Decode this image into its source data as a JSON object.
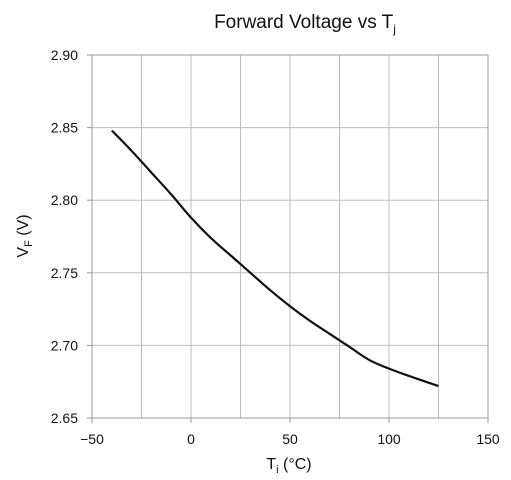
{
  "chart_data": {
    "type": "line",
    "title": "Forward Voltage vs Tj",
    "title_main": "Forward Voltage  vs T",
    "title_sub": "j",
    "xlabel": "Ti (°C)",
    "xlabel_main": "T",
    "xlabel_sub": "i",
    "xlabel_unit": " (°C)",
    "ylabel": "VF (V)",
    "ylabel_main": "V",
    "ylabel_sub": "F",
    "ylabel_unit": " (V)",
    "xlim": [
      -50,
      150
    ],
    "ylim": [
      2.65,
      2.9
    ],
    "grid": true,
    "x_ticks": [
      -50,
      0,
      50,
      100,
      150
    ],
    "x_tick_labels": [
      "−50",
      "0",
      "50",
      "100",
      "150"
    ],
    "x_gridlines": [
      -50,
      -25,
      0,
      25,
      50,
      75,
      100,
      125,
      150
    ],
    "y_ticks": [
      2.65,
      2.7,
      2.75,
      2.8,
      2.85,
      2.9
    ],
    "y_tick_labels": [
      "2.65",
      "2.70",
      "2.75",
      "2.80",
      "2.85",
      "2.90"
    ],
    "line_color": "#111111",
    "grid_color": "#bdbdbd",
    "series": [
      {
        "x": [
          -40,
          -30,
          -20,
          -10,
          0,
          10,
          20,
          25,
          30,
          40,
          50,
          60,
          70,
          80,
          90,
          100,
          110,
          125
        ],
        "y": [
          2.848,
          2.834,
          2.819,
          2.804,
          2.788,
          2.774,
          2.762,
          2.756,
          2.75,
          2.738,
          2.727,
          2.717,
          2.708,
          2.699,
          2.69,
          2.684,
          2.679,
          2.672
        ]
      }
    ]
  }
}
